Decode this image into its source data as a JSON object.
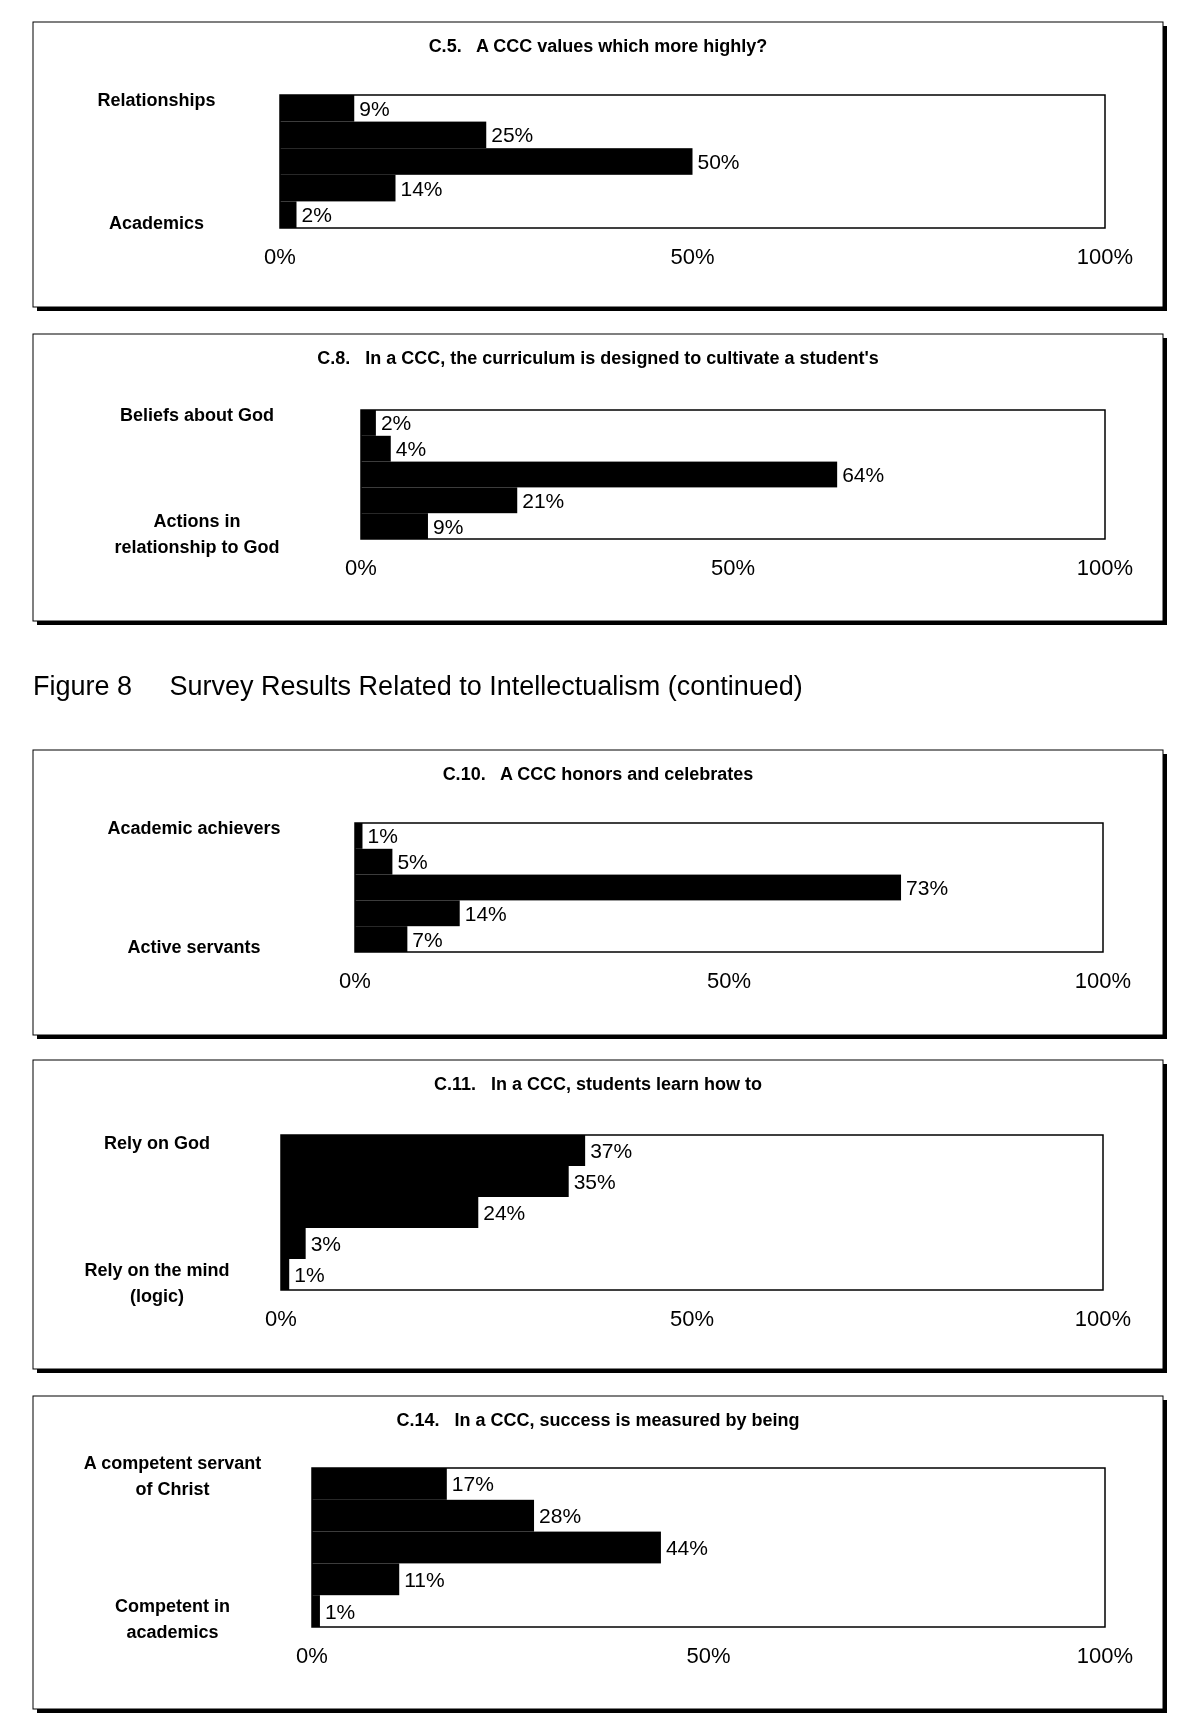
{
  "chart_data": [
    {
      "type": "bar",
      "orientation": "horizontal",
      "title": "C.5.   A CCC values which more highly?",
      "categories": [
        "Relationships",
        null,
        null,
        null,
        "Academics"
      ],
      "values": [
        9,
        25,
        50,
        14,
        2
      ],
      "value_labels": [
        "9%",
        "25%",
        "50%",
        "14%",
        "2%"
      ],
      "color": "#000000",
      "xlim": [
        0,
        100
      ],
      "xticks": [
        {
          "value": 0,
          "label": "0%"
        },
        {
          "value": 50,
          "label": "50%"
        },
        {
          "value": 100,
          "label": "100%"
        }
      ]
    },
    {
      "type": "bar",
      "orientation": "horizontal",
      "title": "C.8.   In a CCC, the curriculum is designed to cultivate a student's",
      "categories": [
        "Beliefs about God",
        null,
        null,
        null,
        "Actions in relationship to God"
      ],
      "values": [
        2,
        4,
        64,
        21,
        9
      ],
      "value_labels": [
        "2%",
        "4%",
        "64%",
        "21%",
        "9%"
      ],
      "color": "#000000",
      "xlim": [
        0,
        100
      ],
      "xticks": [
        {
          "value": 0,
          "label": "0%"
        },
        {
          "value": 50,
          "label": "50%"
        },
        {
          "value": 100,
          "label": "100%"
        }
      ]
    },
    {
      "type": "bar",
      "orientation": "horizontal",
      "title": "C.10.   A CCC honors and celebrates",
      "annotations": [
        "Figure 8     Survey Results Related to Intellectualism (continued)"
      ],
      "categories": [
        "Academic achievers",
        null,
        null,
        null,
        "Active servants"
      ],
      "values": [
        1,
        5,
        73,
        14,
        7
      ],
      "value_labels": [
        "1%",
        "5%",
        "73%",
        "14%",
        "7%"
      ],
      "color": "#000000",
      "xlim": [
        0,
        100
      ],
      "xticks": [
        {
          "value": 0,
          "label": "0%"
        },
        {
          "value": 50,
          "label": "50%"
        },
        {
          "value": 100,
          "label": "100%"
        }
      ]
    },
    {
      "type": "bar",
      "orientation": "horizontal",
      "title": "C.11.   In a CCC, students learn how to",
      "categories": [
        "Rely on God",
        null,
        null,
        null,
        "Rely on the mind (logic)"
      ],
      "values": [
        37,
        35,
        24,
        3,
        1
      ],
      "value_labels": [
        "37%",
        "35%",
        "24%",
        "3%",
        "1%"
      ],
      "color": "#000000",
      "xlim": [
        0,
        100
      ],
      "xticks": [
        {
          "value": 0,
          "label": "0%"
        },
        {
          "value": 50,
          "label": "50%"
        },
        {
          "value": 100,
          "label": "100%"
        }
      ]
    },
    {
      "type": "bar",
      "orientation": "horizontal",
      "title": "C.14.   In a CCC, success is measured by being",
      "categories": [
        "A competent servant of Christ",
        null,
        null,
        null,
        "Competent in academics"
      ],
      "values": [
        17,
        28,
        44,
        11,
        1
      ],
      "value_labels": [
        "17%",
        "28%",
        "44%",
        "11%",
        "1%"
      ],
      "color": "#000000",
      "xlim": [
        0,
        100
      ],
      "xticks": [
        {
          "value": 0,
          "label": "0%"
        },
        {
          "value": 50,
          "label": "50%"
        },
        {
          "value": 100,
          "label": "100%"
        }
      ]
    }
  ]
}
